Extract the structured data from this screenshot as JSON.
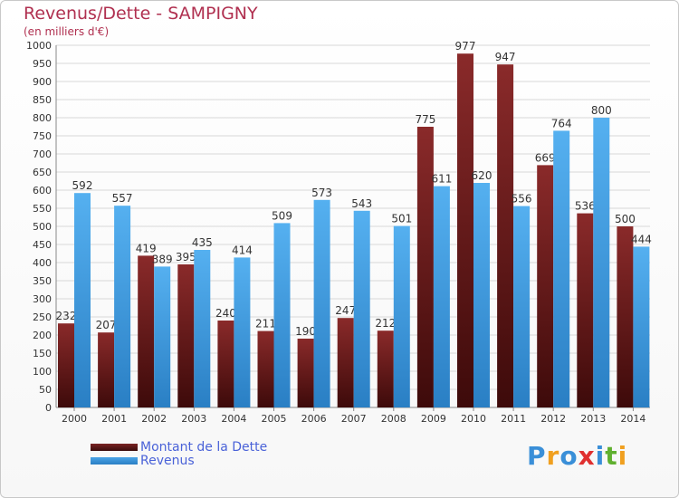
{
  "header": {
    "title": "Revenus/Dette - SAMPIGNY",
    "subtitle": "(en milliers d'€)"
  },
  "colors": {
    "debt": "#7a2323",
    "revenue": "#4aa3e6",
    "title": "#b03050",
    "legend_text": "#4a62d8"
  },
  "legend": {
    "debt_label": "Montant de la Dette",
    "revenue_label": "Revenus"
  },
  "logo": {
    "text": "Proxiti"
  },
  "chart_data": {
    "type": "bar",
    "categories": [
      "2000",
      "2001",
      "2002",
      "2003",
      "2004",
      "2005",
      "2006",
      "2007",
      "2008",
      "2009",
      "2010",
      "2011",
      "2012",
      "2013",
      "2014"
    ],
    "series": [
      {
        "name": "Montant de la Dette",
        "values": [
          232,
          207,
          419,
          395,
          240,
          211,
          190,
          247,
          212,
          775,
          977,
          947,
          669,
          536,
          500
        ]
      },
      {
        "name": "Revenus",
        "values": [
          592,
          557,
          389,
          435,
          414,
          509,
          573,
          543,
          501,
          611,
          620,
          556,
          764,
          800,
          444
        ]
      }
    ],
    "title": "Revenus/Dette - SAMPIGNY",
    "subtitle": "(en milliers d'€)",
    "ylim": [
      0,
      1000
    ],
    "yticks": [
      0,
      50,
      100,
      150,
      200,
      250,
      300,
      350,
      400,
      450,
      500,
      550,
      600,
      650,
      700,
      750,
      800,
      850,
      900,
      950,
      1000
    ],
    "grid": true,
    "legend_position": "bottom-left"
  }
}
